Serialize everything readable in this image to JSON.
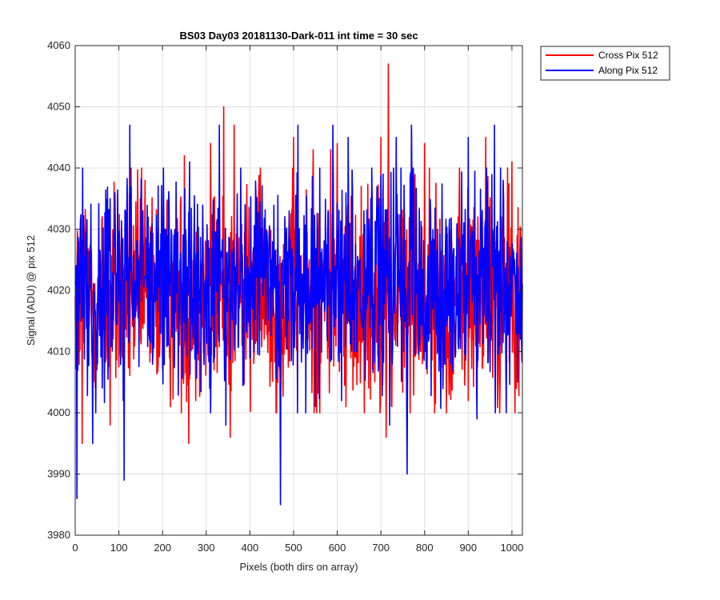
{
  "chart_data": {
    "type": "line",
    "title": "BS03 Day03 20181130-Dark-011 int time = 30 sec",
    "xlabel": "Pixels (both dirs on array)",
    "ylabel": "Signal (ADU) @ pix 512",
    "xlim": [
      0,
      1024
    ],
    "ylim": [
      3980,
      4060
    ],
    "xticks": [
      0,
      100,
      200,
      300,
      400,
      500,
      600,
      700,
      800,
      900,
      1000
    ],
    "yticks": [
      3980,
      3990,
      4000,
      4010,
      4020,
      4030,
      4040,
      4050,
      4060
    ],
    "grid": true,
    "legend_position": "outside-top-right",
    "series": [
      {
        "name": "Cross Pix 512",
        "color": "#ff0000",
        "mean": 4019,
        "x": [
          0,
          8,
          16,
          35,
          58,
          80,
          106,
          128,
          150,
          160,
          190,
          225,
          250,
          260,
          280,
          310,
          340,
          355,
          364,
          405,
          420,
          460,
          500,
          545,
          560,
          585,
          600,
          620,
          655,
          700,
          712,
          717,
          725,
          770,
          800,
          850,
          880,
          900,
          922,
          940,
          976,
          1000,
          1010,
          1024
        ],
        "y": [
          4019,
          4028,
          3995,
          4020,
          4024,
          3998,
          4030,
          4040,
          4012,
          4038,
          4008,
          4015,
          4042,
          3995,
          4025,
          4044,
          4050,
          3996,
          4047,
          4012,
          4036,
          4000,
          4045,
          4043,
          4000,
          4043,
          4044,
          4001,
          4037,
          4045,
          3996,
          4057,
          4001,
          4046,
          4044,
          4000,
          4040,
          4002,
          4032,
          4045,
          4032,
          4041,
          4004,
          4019
        ]
      },
      {
        "name": "Along Pix 512",
        "color": "#0000ff",
        "mean": 4021,
        "x": [
          0,
          4,
          12,
          40,
          80,
          112,
          125,
          140,
          170,
          205,
          240,
          262,
          300,
          330,
          345,
          372,
          409,
          449,
          470,
          490,
          510,
          525,
          550,
          560,
          590,
          610,
          625,
          645,
          680,
          705,
          720,
          735,
          752,
          760,
          770,
          780,
          830,
          860,
          900,
          920,
          960,
          980,
          1000,
          1024
        ],
        "y": [
          4021,
          3986,
          4031,
          3995,
          4035,
          3989,
          4047,
          4020,
          4012,
          4030,
          4025,
          4041,
          4015,
          4047,
          3998,
          4022,
          4010,
          4025,
          3985,
          4033,
          4047,
          4018,
          4001,
          4040,
          4047,
          4002,
          4045,
          4010,
          4035,
          4039,
          3998,
          4045,
          4010,
          3990,
          4047,
          4022,
          4030,
          4008,
          4045,
          3999,
          4047,
          4038,
          4021,
          4021
        ]
      }
    ]
  }
}
